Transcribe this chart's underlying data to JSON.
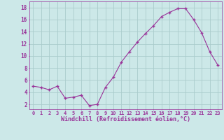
{
  "x": [
    0,
    1,
    2,
    3,
    4,
    5,
    6,
    7,
    8,
    9,
    10,
    11,
    12,
    13,
    14,
    15,
    16,
    17,
    18,
    19,
    20,
    21,
    22,
    23
  ],
  "y": [
    5.0,
    4.8,
    4.4,
    5.0,
    3.0,
    3.2,
    3.5,
    1.8,
    2.0,
    4.8,
    6.5,
    9.0,
    10.7,
    12.3,
    13.7,
    15.0,
    16.5,
    17.2,
    17.8,
    17.8,
    16.0,
    13.8,
    10.7,
    8.5
  ],
  "line_color": "#993399",
  "marker": "+",
  "bg_color": "#cce8e8",
  "grid_color": "#aacccc",
  "xlabel": "Windchill (Refroidissement éolien,°C)",
  "xlabel_color": "#993399",
  "tick_color": "#993399",
  "ylabel_ticks": [
    2,
    4,
    6,
    8,
    10,
    12,
    14,
    16,
    18
  ],
  "xlim": [
    -0.5,
    23.5
  ],
  "ylim": [
    1.2,
    19.0
  ]
}
